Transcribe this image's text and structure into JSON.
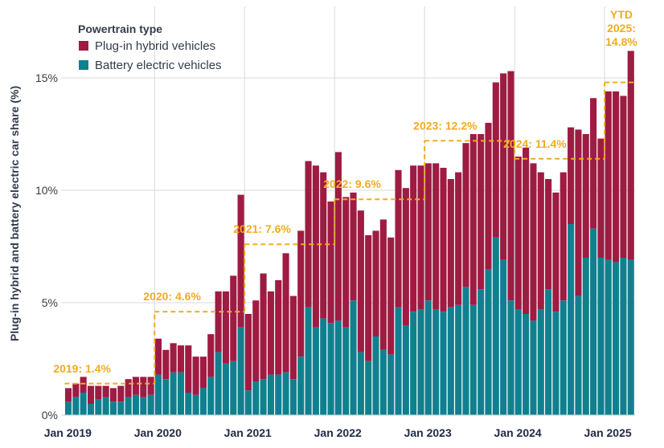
{
  "colors": {
    "phev": "#9e1b42",
    "bev": "#10808f",
    "annotation": "#f2ab1f",
    "grid": "#d6d9de",
    "text": "#333c4a"
  },
  "chart_data": {
    "type": "bar",
    "stacked": true,
    "ylabel": "Plug-in hybrid and battery electric car share (%)",
    "y_unit": "%",
    "ylim": [
      0,
      17.5
    ],
    "y_ticks": [
      0,
      5,
      10,
      15
    ],
    "y_tick_labels": [
      "0%",
      "5%",
      "10%",
      "15%"
    ],
    "grid": "horizontal",
    "x_ticks": [
      {
        "index": 0,
        "label": "Jan 2019"
      },
      {
        "index": 12,
        "label": "Jan 2020"
      },
      {
        "index": 24,
        "label": "Jan 2021"
      },
      {
        "index": 36,
        "label": "Jan 2022"
      },
      {
        "index": 48,
        "label": "Jan 2023"
      },
      {
        "index": 60,
        "label": "Jan 2024"
      },
      {
        "index": 72,
        "label": "Jan 2025"
      }
    ],
    "legend": {
      "title": "Powertrain type",
      "position": "top-left",
      "entries": [
        {
          "key": "phev",
          "label": "Plug-in hybrid vehicles"
        },
        {
          "key": "bev",
          "label": "Battery electric vehicles"
        }
      ]
    },
    "series": [
      {
        "name": "Battery electric vehicles",
        "key": "bev",
        "values": [
          0.6,
          0.8,
          1.0,
          0.5,
          0.7,
          0.8,
          0.6,
          0.6,
          0.8,
          0.9,
          0.8,
          0.9,
          1.8,
          1.6,
          1.9,
          1.9,
          1.0,
          0.9,
          1.2,
          1.7,
          2.8,
          2.3,
          2.4,
          3.9,
          1.1,
          1.5,
          1.6,
          1.8,
          1.8,
          1.9,
          1.6,
          2.6,
          4.8,
          3.9,
          4.3,
          4.1,
          4.2,
          3.9,
          5.1,
          2.8,
          2.4,
          3.5,
          2.9,
          2.7,
          4.8,
          4.0,
          4.6,
          4.7,
          5.1,
          4.7,
          4.6,
          4.8,
          4.9,
          5.7,
          4.9,
          5.6,
          6.5,
          7.9,
          6.9,
          5.1,
          4.7,
          4.5,
          4.2,
          4.7,
          5.6,
          4.6,
          5.1,
          8.5,
          5.3,
          7.0,
          8.3,
          7.0,
          6.9,
          6.8,
          7.0,
          6.9
        ]
      },
      {
        "name": "Plug-in hybrid vehicles",
        "key": "phev",
        "values": [
          0.6,
          0.6,
          0.7,
          0.8,
          0.6,
          0.5,
          0.6,
          0.7,
          0.8,
          0.8,
          0.9,
          0.8,
          1.6,
          1.3,
          1.3,
          1.2,
          2.1,
          1.7,
          1.4,
          1.9,
          2.7,
          3.2,
          3.8,
          5.9,
          3.4,
          3.6,
          4.7,
          3.7,
          4.2,
          5.3,
          3.7,
          5.6,
          6.5,
          7.2,
          6.5,
          5.4,
          7.5,
          5.8,
          4.8,
          6.3,
          5.6,
          4.7,
          5.8,
          5.2,
          6.1,
          6.1,
          6.5,
          6.4,
          6.1,
          6.5,
          6.4,
          5.7,
          5.9,
          6.4,
          7.6,
          6.9,
          6.5,
          6.9,
          8.3,
          10.2,
          6.8,
          7.4,
          7.0,
          6.1,
          4.9,
          5.3,
          5.7,
          4.3,
          7.4,
          5.5,
          5.8,
          5.3,
          7.5,
          7.6,
          7.2,
          9.3
        ]
      }
    ],
    "annotations": [
      {
        "label": "2019: 1.4%",
        "start": 0,
        "end": 11,
        "value": 1.4
      },
      {
        "label": "2020: 4.6%",
        "start": 12,
        "end": 23,
        "value": 4.6
      },
      {
        "label": "2021: 7.6%",
        "start": 24,
        "end": 35,
        "value": 7.6
      },
      {
        "label": "2022: 9.6%",
        "start": 36,
        "end": 47,
        "value": 9.6
      },
      {
        "label": "2023: 12.2%",
        "start": 48,
        "end": 59,
        "value": 12.2
      },
      {
        "label": "2024: 11.4%",
        "start": 60,
        "end": 71,
        "value": 11.4
      },
      {
        "label": [
          "YTD",
          "2025:",
          "14.8%"
        ],
        "start": 72,
        "end": 75,
        "value": 14.8
      }
    ]
  }
}
